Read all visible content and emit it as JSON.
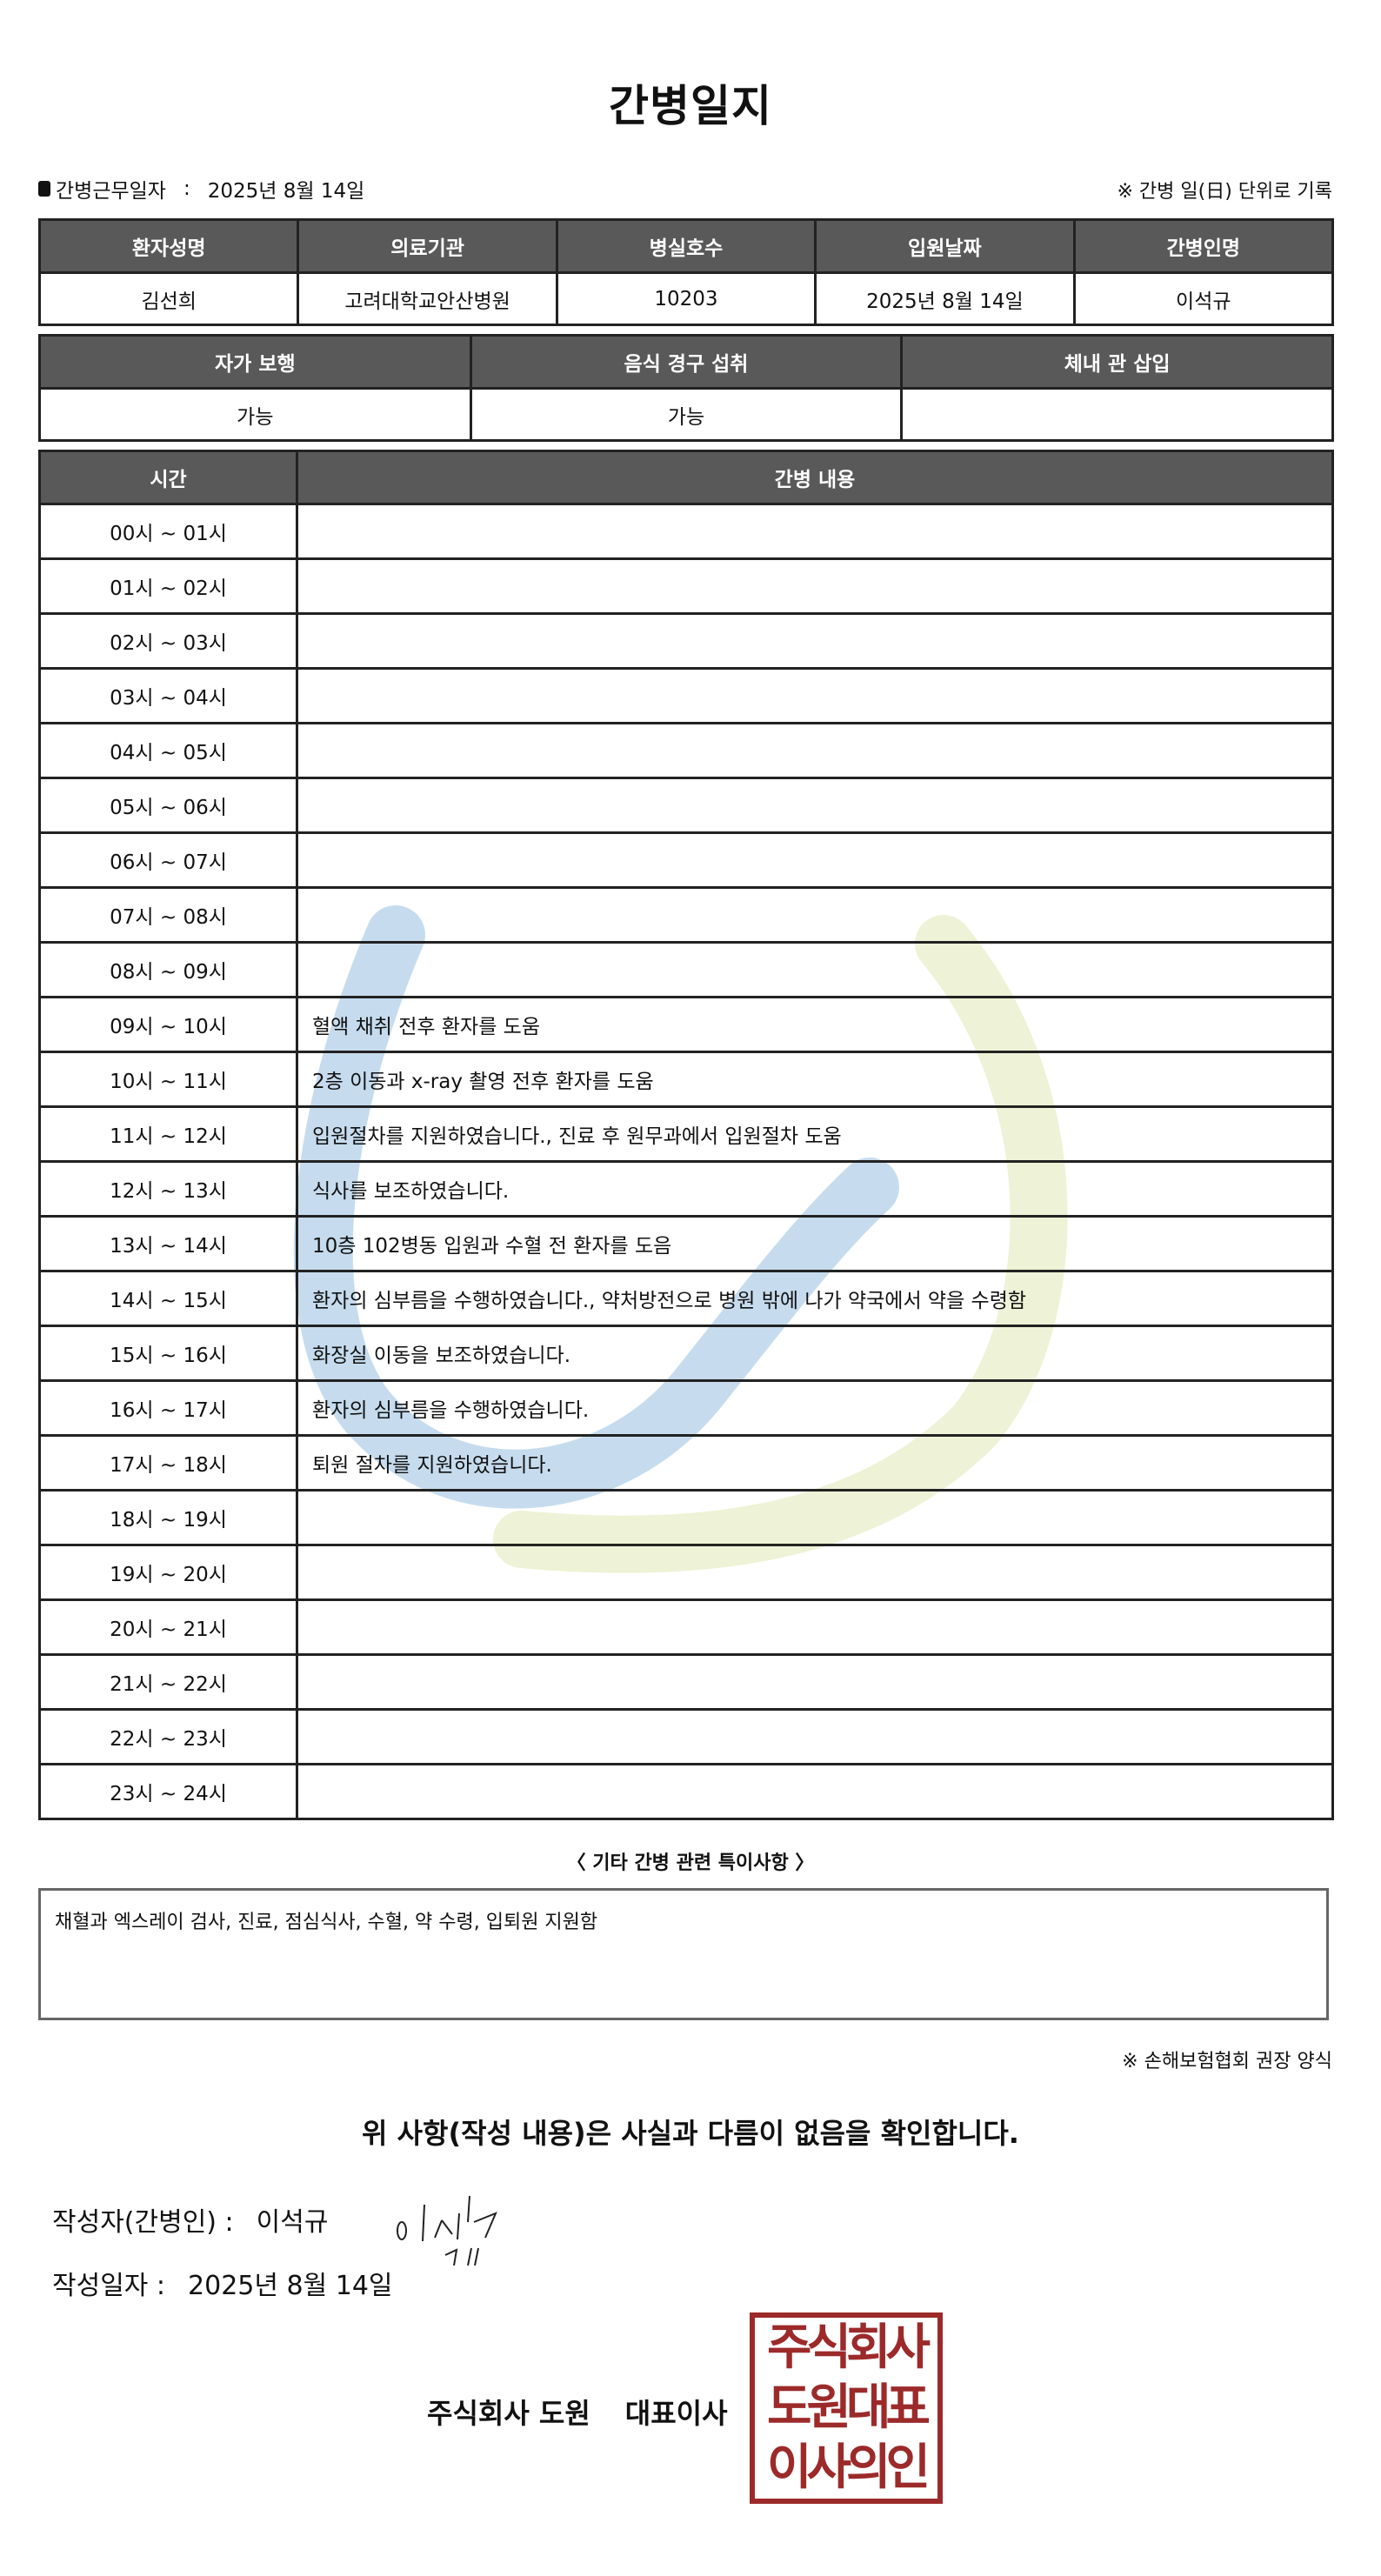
{
  "title": "간병일지",
  "info": {
    "work_date_label": "간병근무일자",
    "separator": ":",
    "work_date": "2025년 8월 14일",
    "unit_note": "※ 간병 일(日) 단위로 기록"
  },
  "patient_table": {
    "headers": [
      "환자성명",
      "의료기관",
      "병실호수",
      "입원날짜",
      "간병인명"
    ],
    "values": [
      "김선희",
      "고려대학교안산병원",
      "10203",
      "2025년 8월 14일",
      "이석규"
    ]
  },
  "status_table": {
    "headers": [
      "자가 보행",
      "음식 경구 섭취",
      "체내 관 삽입"
    ],
    "values": [
      "가능",
      "가능",
      ""
    ]
  },
  "care_table": {
    "headers": [
      "시간",
      "간병 내용"
    ],
    "rows": [
      {
        "time": "00시 ~ 01시",
        "content": ""
      },
      {
        "time": "01시 ~ 02시",
        "content": ""
      },
      {
        "time": "02시 ~ 03시",
        "content": ""
      },
      {
        "time": "03시 ~ 04시",
        "content": ""
      },
      {
        "time": "04시 ~ 05시",
        "content": ""
      },
      {
        "time": "05시 ~ 06시",
        "content": ""
      },
      {
        "time": "06시 ~ 07시",
        "content": ""
      },
      {
        "time": "07시 ~ 08시",
        "content": ""
      },
      {
        "time": "08시 ~ 09시",
        "content": ""
      },
      {
        "time": "09시 ~ 10시",
        "content": "혈액 채취 전후 환자를 도움"
      },
      {
        "time": "10시 ~ 11시",
        "content": "2층 이동과 x-ray 촬영 전후 환자를 도움"
      },
      {
        "time": "11시 ~ 12시",
        "content": "입원절차를 지원하였습니다., 진료 후 원무과에서 입원절차 도움"
      },
      {
        "time": "12시 ~ 13시",
        "content": "식사를 보조하였습니다."
      },
      {
        "time": "13시 ~ 14시",
        "content": "10층 102병동 입원과 수혈 전 환자를 도음"
      },
      {
        "time": "14시 ~ 15시",
        "content": "환자의 심부름을 수행하였습니다., 약처방전으로 병원 밖에 나가 약국에서 약을 수령함"
      },
      {
        "time": "15시 ~ 16시",
        "content": "화장실 이동을 보조하였습니다."
      },
      {
        "time": "16시 ~ 17시",
        "content": "환자의 심부름을 수행하였습니다."
      },
      {
        "time": "17시 ~ 18시",
        "content": "퇴원 절차를 지원하였습니다."
      },
      {
        "time": "18시 ~ 19시",
        "content": ""
      },
      {
        "time": "19시 ~ 20시",
        "content": ""
      },
      {
        "time": "20시 ~ 21시",
        "content": ""
      },
      {
        "time": "21시 ~ 22시",
        "content": ""
      },
      {
        "time": "22시 ~ 23시",
        "content": ""
      },
      {
        "time": "23시 ~ 24시",
        "content": ""
      }
    ]
  },
  "notes": {
    "title": "〈 기타 간병 관련 특이사항 〉",
    "content": "채혈과 엑스레이 검사, 진료, 점심식사, 수혈, 약 수령, 입퇴원 지원함"
  },
  "form_note": "※ 손해보험협회 권장 양식",
  "confirmation": "위 사항(작성 내용)은 사실과 다름이 없음을 확인합니다.",
  "author": {
    "label": "작성자(간병인) :",
    "name": "이석규"
  },
  "written_date": {
    "label": "작성일자 :",
    "value": "2025년 8월 14일"
  },
  "company": {
    "name": "주식회사 도원",
    "title": "대표이사"
  },
  "seal": {
    "lines": [
      "주식회사",
      "도원대표",
      "이사의인"
    ],
    "color": "#9c2a2a"
  },
  "colors": {
    "header_bg": "#595959",
    "watermark_blue": "#c6dcee",
    "watermark_green": "#eef2d6"
  }
}
